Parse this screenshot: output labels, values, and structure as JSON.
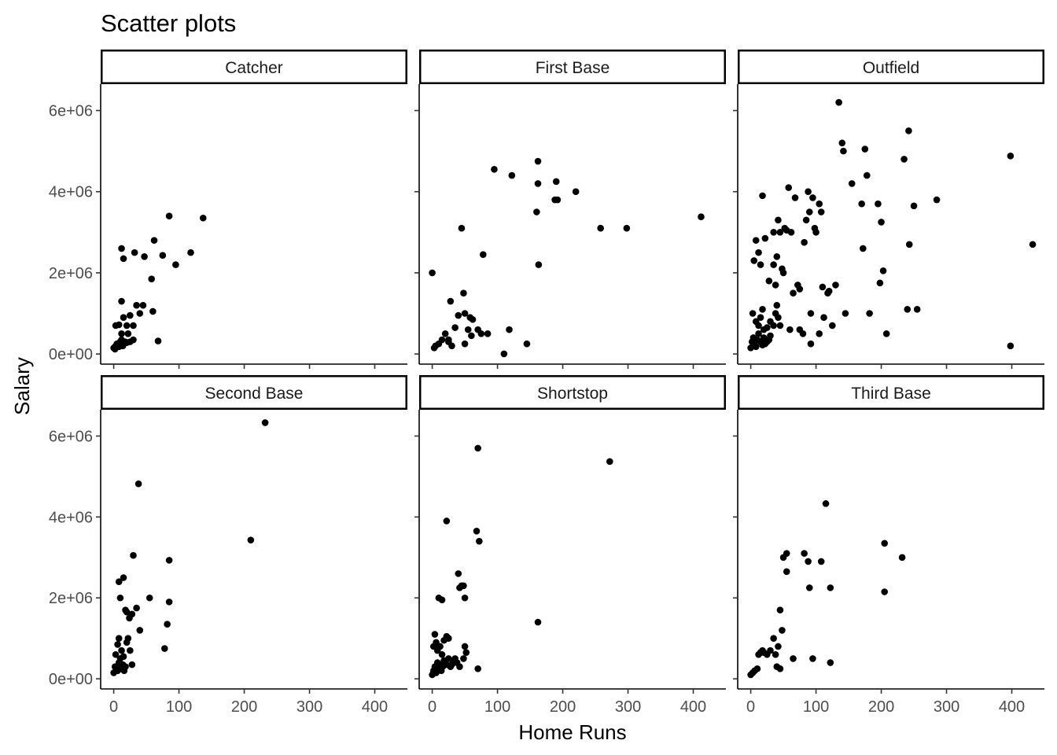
{
  "chart_data": {
    "type": "scatter",
    "title": "Scatter plots",
    "xlabel": "Home Runs",
    "ylabel": "Salary",
    "xlim": [
      -20,
      450
    ],
    "ylim": [
      -250000,
      6650000
    ],
    "x_ticks": [
      0,
      100,
      200,
      300,
      400
    ],
    "x_tick_labels": [
      "0",
      "100",
      "200",
      "300",
      "400"
    ],
    "y_ticks": [
      0,
      2000000,
      4000000,
      6000000
    ],
    "y_tick_labels": [
      "0e+00",
      "2e+06",
      "4e+06",
      "6e+06"
    ],
    "grid": false,
    "legend": "none",
    "point_color": "#000000",
    "panels": [
      {
        "label": "Catcher",
        "points": [
          [
            0,
            150000
          ],
          [
            3,
            200000
          ],
          [
            5,
            250000
          ],
          [
            8,
            180000
          ],
          [
            10,
            300000
          ],
          [
            12,
            350000
          ],
          [
            15,
            250000
          ],
          [
            18,
            300000
          ],
          [
            2,
            120000
          ],
          [
            6,
            220000
          ],
          [
            9,
            280000
          ],
          [
            14,
            200000
          ],
          [
            20,
            280000
          ],
          [
            25,
            300000
          ],
          [
            3,
            700000
          ],
          [
            8,
            720000
          ],
          [
            12,
            500000
          ],
          [
            15,
            900000
          ],
          [
            20,
            700000
          ],
          [
            22,
            500000
          ],
          [
            25,
            950000
          ],
          [
            30,
            700000
          ],
          [
            35,
            1200000
          ],
          [
            40,
            1000000
          ],
          [
            45,
            1200000
          ],
          [
            30,
            350000
          ],
          [
            60,
            1050000
          ],
          [
            68,
            320000
          ],
          [
            12,
            1300000
          ],
          [
            12,
            2600000
          ],
          [
            15,
            2350000
          ],
          [
            32,
            2500000
          ],
          [
            47,
            2400000
          ],
          [
            58,
            1850000
          ],
          [
            62,
            2800000
          ],
          [
            75,
            2430000
          ],
          [
            85,
            3400000
          ],
          [
            95,
            2200000
          ],
          [
            118,
            2500000
          ],
          [
            137,
            3350000
          ]
        ]
      },
      {
        "label": "First Base",
        "points": [
          [
            0,
            2000000
          ],
          [
            3,
            150000
          ],
          [
            5,
            200000
          ],
          [
            10,
            250000
          ],
          [
            15,
            350000
          ],
          [
            20,
            500000
          ],
          [
            25,
            300000
          ],
          [
            28,
            1300000
          ],
          [
            30,
            200000
          ],
          [
            35,
            650000
          ],
          [
            40,
            950000
          ],
          [
            45,
            3100000
          ],
          [
            48,
            1500000
          ],
          [
            50,
            1000000
          ],
          [
            55,
            600000
          ],
          [
            58,
            900000
          ],
          [
            60,
            450000
          ],
          [
            62,
            850000
          ],
          [
            70,
            600000
          ],
          [
            75,
            500000
          ],
          [
            78,
            2450000
          ],
          [
            85,
            500000
          ],
          [
            95,
            4550000
          ],
          [
            110,
            3000
          ],
          [
            118,
            600000
          ],
          [
            122,
            4400000
          ],
          [
            145,
            250000
          ],
          [
            160,
            3500000
          ],
          [
            162,
            4200000
          ],
          [
            162,
            4750000
          ],
          [
            163,
            2200000
          ],
          [
            190,
            4250000
          ],
          [
            188,
            3800000
          ],
          [
            192,
            3800000
          ],
          [
            220,
            4000000
          ],
          [
            258,
            3100000
          ],
          [
            298,
            3100000
          ],
          [
            412,
            3380000
          ],
          [
            50,
            250000
          ],
          [
            25,
            350000
          ]
        ]
      },
      {
        "label": "Outfield",
        "points": [
          [
            0,
            150000
          ],
          [
            2,
            300000
          ],
          [
            4,
            400000
          ],
          [
            5,
            250000
          ],
          [
            8,
            180000
          ],
          [
            10,
            350000
          ],
          [
            12,
            500000
          ],
          [
            15,
            300000
          ],
          [
            18,
            220000
          ],
          [
            20,
            400000
          ],
          [
            22,
            250000
          ],
          [
            25,
            300000
          ],
          [
            28,
            350000
          ],
          [
            30,
            450000
          ],
          [
            3,
            1000000
          ],
          [
            8,
            800000
          ],
          [
            12,
            700000
          ],
          [
            15,
            900000
          ],
          [
            18,
            1100000
          ],
          [
            20,
            600000
          ],
          [
            25,
            650000
          ],
          [
            30,
            800000
          ],
          [
            35,
            700000
          ],
          [
            38,
            1000000
          ],
          [
            40,
            1200000
          ],
          [
            42,
            900000
          ],
          [
            5,
            2300000
          ],
          [
            8,
            2800000
          ],
          [
            12,
            2500000
          ],
          [
            15,
            2200000
          ],
          [
            18,
            3900000
          ],
          [
            22,
            2850000
          ],
          [
            28,
            1800000
          ],
          [
            35,
            3000000
          ],
          [
            38,
            1700000
          ],
          [
            40,
            2400000
          ],
          [
            42,
            3300000
          ],
          [
            45,
            3000000
          ],
          [
            48,
            2100000
          ],
          [
            50,
            2000000
          ],
          [
            52,
            3100000
          ],
          [
            55,
            3050000
          ],
          [
            58,
            4100000
          ],
          [
            62,
            3000000
          ],
          [
            65,
            1500000
          ],
          [
            68,
            3850000
          ],
          [
            72,
            1700000
          ],
          [
            75,
            1600000
          ],
          [
            80,
            500000
          ],
          [
            82,
            2750000
          ],
          [
            85,
            3300000
          ],
          [
            88,
            4000000
          ],
          [
            90,
            3500000
          ],
          [
            92,
            1000000
          ],
          [
            95,
            3850000
          ],
          [
            98,
            3100000
          ],
          [
            100,
            3000000
          ],
          [
            105,
            3700000
          ],
          [
            108,
            3500000
          ],
          [
            110,
            1650000
          ],
          [
            112,
            900000
          ],
          [
            118,
            1500000
          ],
          [
            120,
            1550000
          ],
          [
            125,
            700000
          ],
          [
            130,
            1700000
          ],
          [
            135,
            6200000
          ],
          [
            140,
            5200000
          ],
          [
            142,
            5000000
          ],
          [
            145,
            1000000
          ],
          [
            155,
            4200000
          ],
          [
            170,
            3700000
          ],
          [
            172,
            2600000
          ],
          [
            175,
            5050000
          ],
          [
            178,
            4400000
          ],
          [
            182,
            1000000
          ],
          [
            195,
            3700000
          ],
          [
            198,
            1750000
          ],
          [
            200,
            3250000
          ],
          [
            203,
            2050000
          ],
          [
            208,
            500000
          ],
          [
            235,
            4800000
          ],
          [
            240,
            1100000
          ],
          [
            242,
            5500000
          ],
          [
            243,
            2700000
          ],
          [
            250,
            3650000
          ],
          [
            255,
            1100000
          ],
          [
            285,
            3800000
          ],
          [
            398,
            4880000
          ],
          [
            398,
            200000
          ],
          [
            432,
            2700000
          ],
          [
            35,
            2200000
          ],
          [
            45,
            700000
          ],
          [
            60,
            600000
          ],
          [
            75,
            600000
          ],
          [
            92,
            250000
          ],
          [
            105,
            500000
          ]
        ]
      },
      {
        "label": "Second Base",
        "points": [
          [
            0,
            150000
          ],
          [
            2,
            300000
          ],
          [
            4,
            250000
          ],
          [
            6,
            200000
          ],
          [
            8,
            400000
          ],
          [
            10,
            300000
          ],
          [
            12,
            250000
          ],
          [
            14,
            350000
          ],
          [
            16,
            200000
          ],
          [
            18,
            300000
          ],
          [
            3,
            600000
          ],
          [
            6,
            850000
          ],
          [
            8,
            1000000
          ],
          [
            10,
            500000
          ],
          [
            12,
            700000
          ],
          [
            15,
            550000
          ],
          [
            20,
            900000
          ],
          [
            22,
            1000000
          ],
          [
            25,
            700000
          ],
          [
            28,
            350000
          ],
          [
            8,
            2400000
          ],
          [
            10,
            2000000
          ],
          [
            15,
            2500000
          ],
          [
            18,
            1700000
          ],
          [
            20,
            1650000
          ],
          [
            24,
            1500000
          ],
          [
            28,
            1600000
          ],
          [
            30,
            3050000
          ],
          [
            35,
            1750000
          ],
          [
            40,
            1200000
          ],
          [
            38,
            4820000
          ],
          [
            55,
            2000000
          ],
          [
            78,
            750000
          ],
          [
            82,
            1350000
          ],
          [
            85,
            1900000
          ],
          [
            85,
            2930000
          ],
          [
            210,
            3430000
          ],
          [
            232,
            6330000
          ]
        ]
      },
      {
        "label": "Shortstop",
        "points": [
          [
            0,
            100000
          ],
          [
            2,
            200000
          ],
          [
            4,
            300000
          ],
          [
            6,
            150000
          ],
          [
            8,
            400000
          ],
          [
            10,
            250000
          ],
          [
            12,
            350000
          ],
          [
            14,
            200000
          ],
          [
            16,
            300000
          ],
          [
            18,
            450000
          ],
          [
            20,
            400000
          ],
          [
            22,
            350000
          ],
          [
            25,
            500000
          ],
          [
            28,
            300000
          ],
          [
            30,
            350000
          ],
          [
            2,
            800000
          ],
          [
            4,
            1100000
          ],
          [
            6,
            900000
          ],
          [
            8,
            700000
          ],
          [
            12,
            800000
          ],
          [
            15,
            600000
          ],
          [
            18,
            950000
          ],
          [
            22,
            1050000
          ],
          [
            25,
            1000000
          ],
          [
            32,
            450000
          ],
          [
            35,
            500000
          ],
          [
            38,
            400000
          ],
          [
            42,
            300000
          ],
          [
            48,
            500000
          ],
          [
            10,
            2000000
          ],
          [
            15,
            1950000
          ],
          [
            22,
            3900000
          ],
          [
            40,
            2600000
          ],
          [
            42,
            2250000
          ],
          [
            45,
            2300000
          ],
          [
            48,
            2300000
          ],
          [
            50,
            2000000
          ],
          [
            50,
            800000
          ],
          [
            52,
            650000
          ],
          [
            68,
            3650000
          ],
          [
            70,
            5700000
          ],
          [
            72,
            3400000
          ],
          [
            70,
            250000
          ],
          [
            162,
            1400000
          ],
          [
            272,
            5370000
          ]
        ]
      },
      {
        "label": "Third Base",
        "points": [
          [
            0,
            100000
          ],
          [
            3,
            150000
          ],
          [
            6,
            200000
          ],
          [
            10,
            250000
          ],
          [
            12,
            600000
          ],
          [
            15,
            650000
          ],
          [
            18,
            700000
          ],
          [
            20,
            650000
          ],
          [
            25,
            600000
          ],
          [
            30,
            700000
          ],
          [
            35,
            1000000
          ],
          [
            38,
            600000
          ],
          [
            40,
            300000
          ],
          [
            42,
            800000
          ],
          [
            45,
            250000
          ],
          [
            45,
            1700000
          ],
          [
            48,
            1200000
          ],
          [
            50,
            3000000
          ],
          [
            55,
            3100000
          ],
          [
            55,
            2650000
          ],
          [
            65,
            500000
          ],
          [
            82,
            3100000
          ],
          [
            88,
            2900000
          ],
          [
            90,
            2250000
          ],
          [
            95,
            500000
          ],
          [
            108,
            2900000
          ],
          [
            115,
            4330000
          ],
          [
            122,
            2250000
          ],
          [
            122,
            400000
          ],
          [
            205,
            3350000
          ],
          [
            205,
            2150000
          ],
          [
            232,
            3000000
          ]
        ]
      }
    ]
  }
}
